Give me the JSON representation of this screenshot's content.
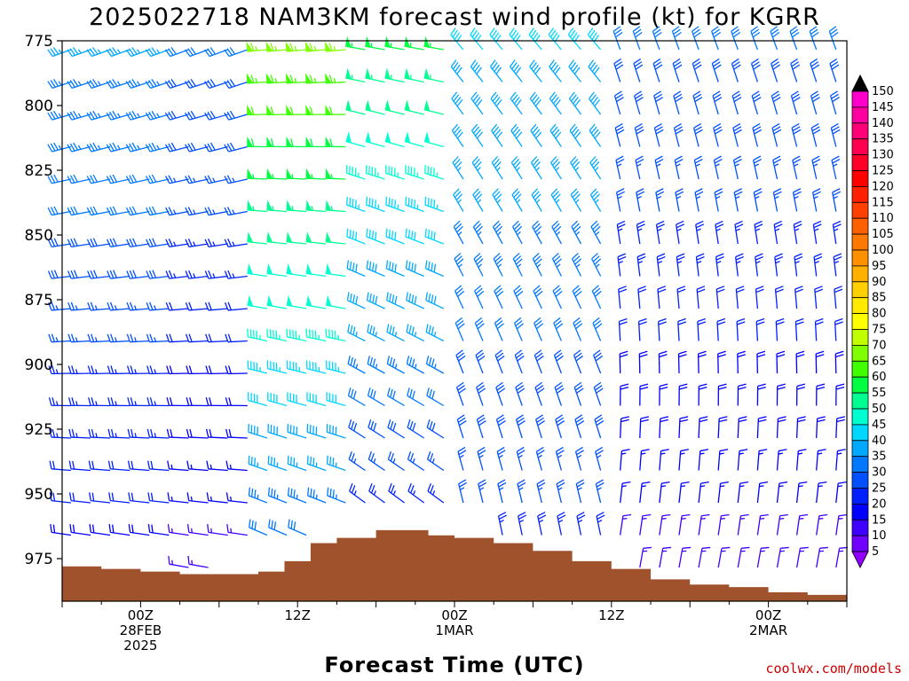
{
  "title": "2025022718 NAM3KM forecast wind profile (kt) for KGRR",
  "credit": "coolwx.com/models",
  "chart_data": {
    "type": "wind-barb time-height profile",
    "title": "2025022718 NAM3KM forecast wind profile (kt) for KGRR",
    "xlabel": "Forecast Time (UTC)",
    "ylabel": "",
    "units": "kt",
    "y_ticks": [
      775,
      800,
      825,
      850,
      875,
      900,
      925,
      950,
      975
    ],
    "ylim": [
      775,
      996
    ],
    "x_ticks": [
      {
        "hour": 6,
        "lines": [
          "00Z",
          "28FEB",
          "2025"
        ]
      },
      {
        "hour": 18,
        "lines": [
          "12Z"
        ]
      },
      {
        "hour": 30,
        "lines": [
          "00Z",
          "1MAR"
        ]
      },
      {
        "hour": 42,
        "lines": [
          "12Z"
        ]
      },
      {
        "hour": 54,
        "lines": [
          "00Z",
          "2MAR"
        ]
      }
    ],
    "xlim": [
      0,
      60
    ],
    "colorbar_levels": [
      150,
      145,
      140,
      135,
      130,
      125,
      120,
      115,
      110,
      105,
      100,
      95,
      90,
      85,
      80,
      75,
      70,
      65,
      60,
      55,
      50,
      45,
      40,
      35,
      30,
      25,
      20,
      15,
      10,
      5
    ],
    "colorbar_colors": [
      "#ff00cc",
      "#ff00a0",
      "#ff0078",
      "#ff0050",
      "#ff0028",
      "#ff0000",
      "#ff2000",
      "#ff4000",
      "#ff6000",
      "#ff7800",
      "#ff9000",
      "#ffb000",
      "#ffd000",
      "#ffea00",
      "#ffff00",
      "#c0ff00",
      "#80ff00",
      "#40ff00",
      "#00ff40",
      "#00ff90",
      "#00ffd0",
      "#00d8ff",
      "#00a8ff",
      "#0078ff",
      "#0050ff",
      "#0020ff",
      "#0000ff",
      "#4000ff",
      "#7000ff",
      "#9000ff"
    ],
    "surface_pressure": [
      {
        "hour": 0,
        "p": 978
      },
      {
        "hour": 3,
        "p": 979
      },
      {
        "hour": 6,
        "p": 980
      },
      {
        "hour": 9,
        "p": 981
      },
      {
        "hour": 12,
        "p": 981
      },
      {
        "hour": 15,
        "p": 980
      },
      {
        "hour": 17,
        "p": 976
      },
      {
        "hour": 19,
        "p": 969
      },
      {
        "hour": 21,
        "p": 967
      },
      {
        "hour": 24,
        "p": 964
      },
      {
        "hour": 26,
        "p": 964
      },
      {
        "hour": 28,
        "p": 966
      },
      {
        "hour": 30,
        "p": 967
      },
      {
        "hour": 33,
        "p": 969
      },
      {
        "hour": 36,
        "p": 972
      },
      {
        "hour": 39,
        "p": 976
      },
      {
        "hour": 42,
        "p": 979
      },
      {
        "hour": 45,
        "p": 983
      },
      {
        "hour": 48,
        "p": 985
      },
      {
        "hour": 51,
        "p": 986
      },
      {
        "hour": 54,
        "p": 988
      },
      {
        "hour": 57,
        "p": 989
      },
      {
        "hour": 60,
        "p": 988
      }
    ],
    "wind_regimes": [
      {
        "hours": [
          0,
          8
        ],
        "direction_deg": 250,
        "speed_kt": 30
      },
      {
        "hours": [
          8,
          14
        ],
        "direction_deg": 250,
        "speed_kt": 25
      },
      {
        "hours": [
          14,
          22
        ],
        "direction_deg": 265,
        "speed_kt": 55
      },
      {
        "hours": [
          22,
          30
        ],
        "direction_deg": 280,
        "speed_kt": 45
      },
      {
        "hours": [
          30,
          42
        ],
        "direction_deg": 320,
        "speed_kt": 35
      },
      {
        "hours": [
          42,
          60
        ],
        "direction_deg": 340,
        "speed_kt": 25
      }
    ]
  }
}
